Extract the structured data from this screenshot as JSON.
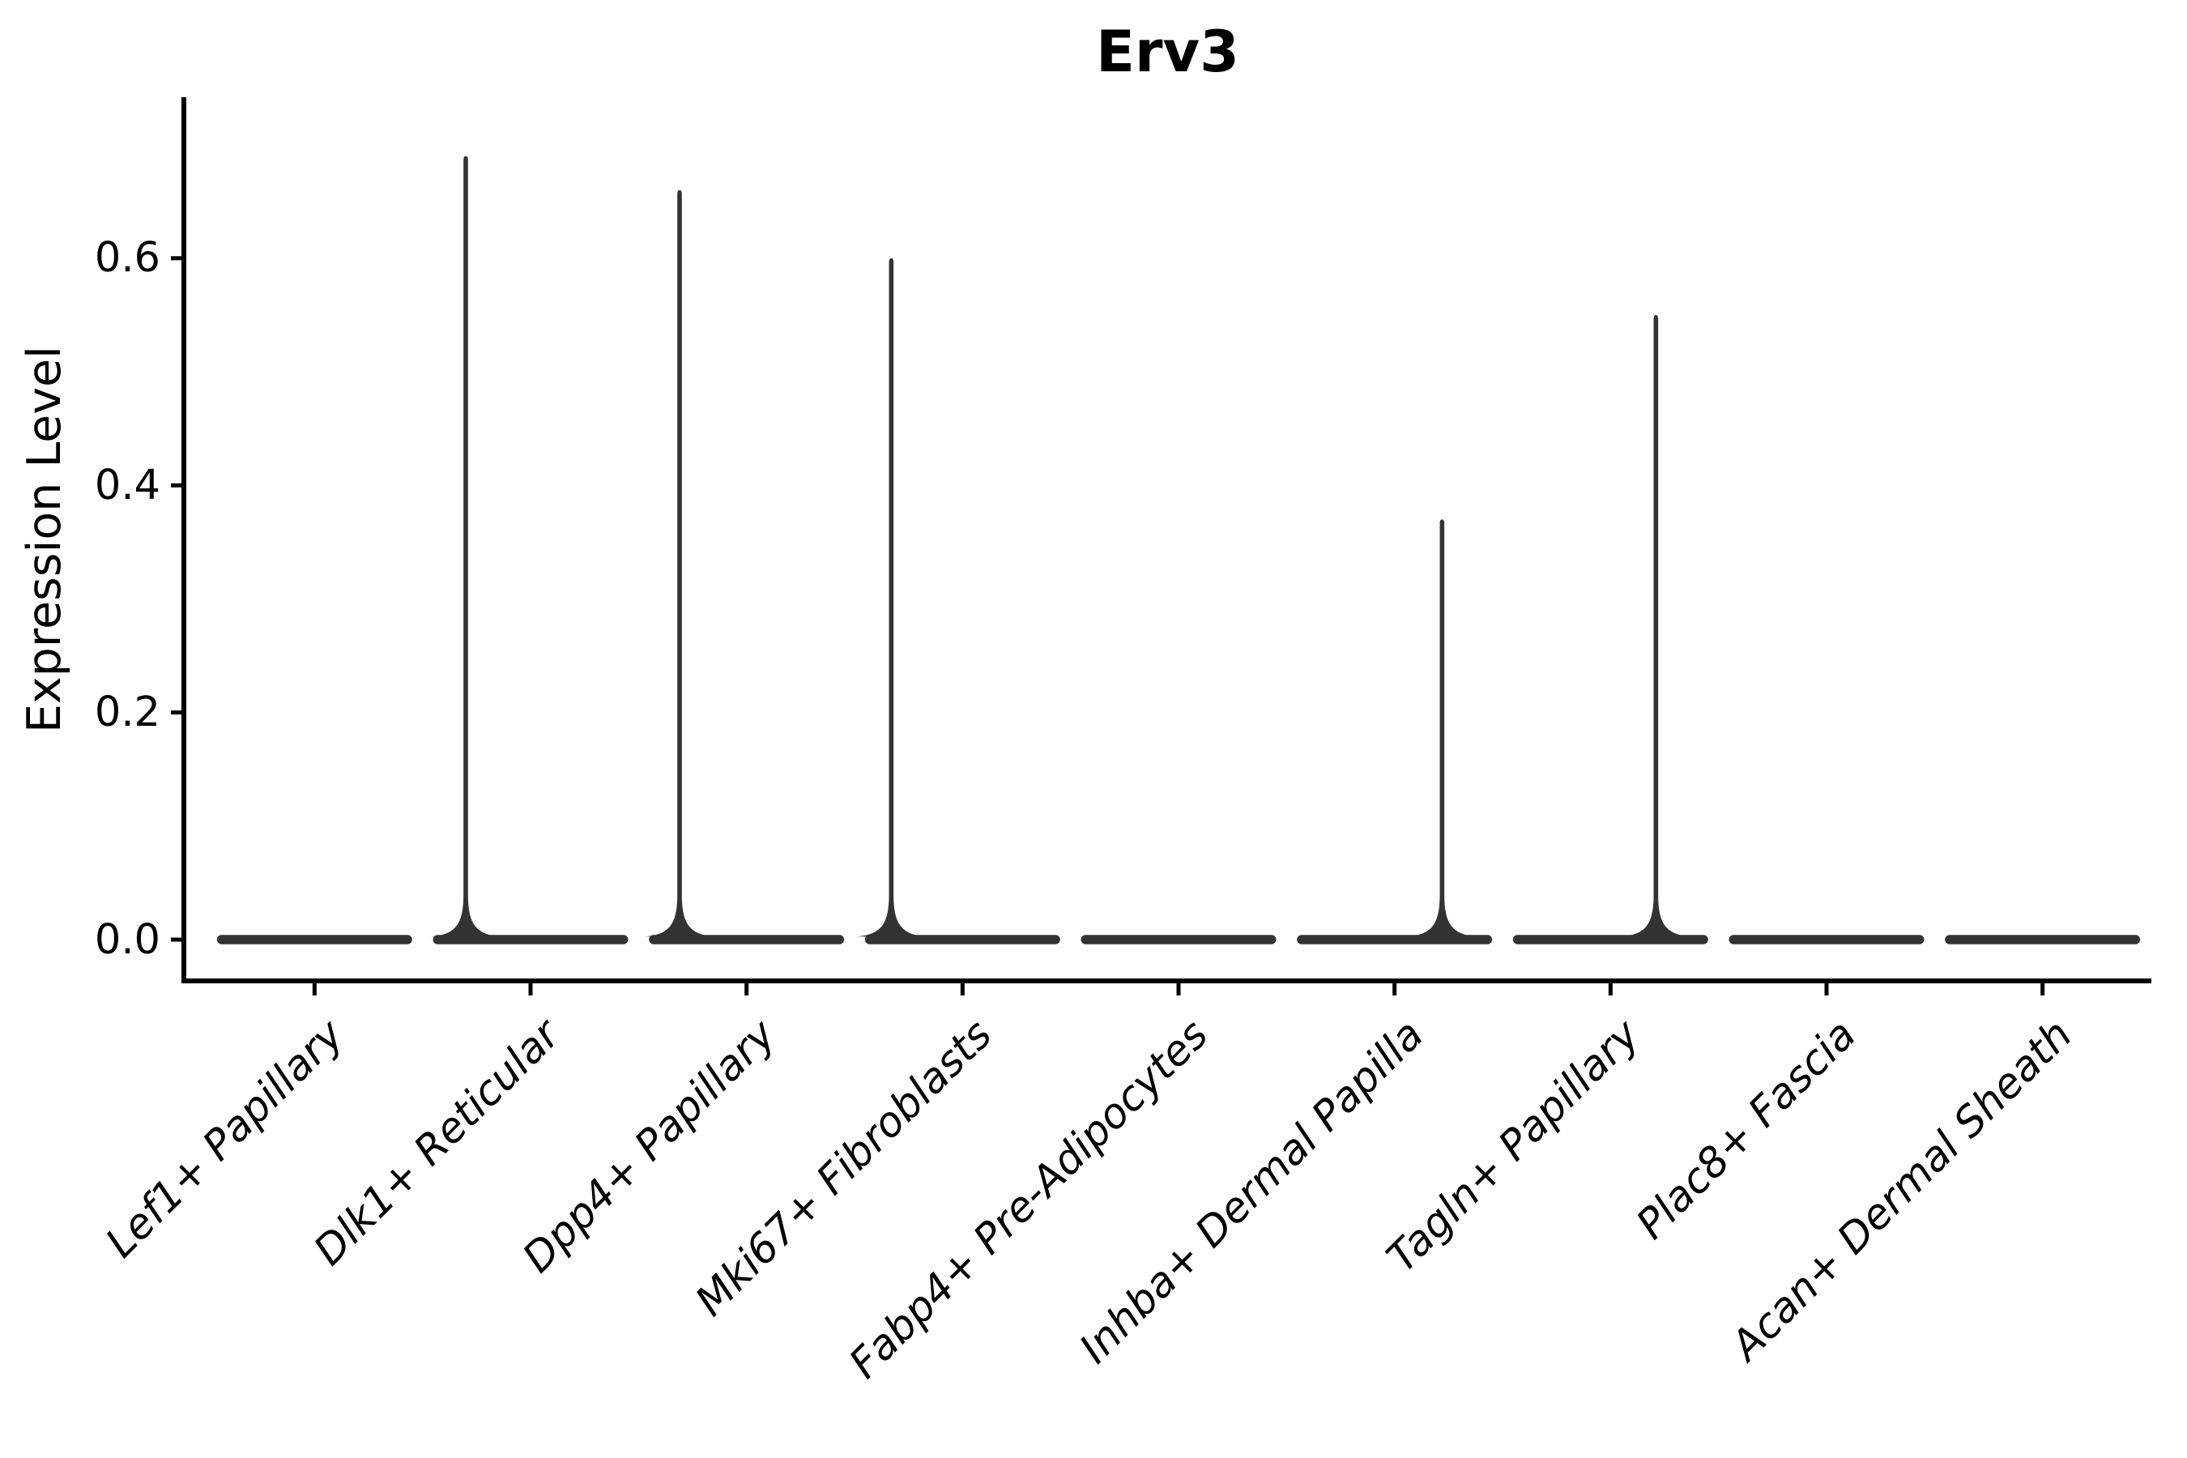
{
  "title": "Erv3",
  "ylabel": "Expression Level",
  "chart_data": {
    "type": "violin",
    "title": "Erv3",
    "xlabel": "",
    "ylabel": "Expression Level",
    "ylim": [
      0,
      0.74
    ],
    "yticks": [
      0.0,
      0.2,
      0.4,
      0.6
    ],
    "ytick_labels": [
      "0.0",
      "0.2",
      "0.4",
      "0.6"
    ],
    "grid": false,
    "legend": false,
    "categories": [
      "Lef1+ Papillary",
      "Dlk1+ Reticular",
      "Dpp4+ Papillary",
      "Mki67+ Fibroblasts",
      "Fabp4+ Pre-Adipocytes",
      "Inhba+ Dermal Papilla",
      "Tagln+ Papillary",
      "Plac8+ Fascia",
      "Acan+ Dermal Sheath"
    ],
    "violins": [
      {
        "category": "Lef1+ Papillary",
        "max_expression": 0.0,
        "bulk_at": 0.0,
        "has_spike": false,
        "spike_offset_frac": 0
      },
      {
        "category": "Dlk1+ Reticular",
        "max_expression": 0.69,
        "bulk_at": 0.0,
        "has_spike": true,
        "spike_offset_frac": -0.3
      },
      {
        "category": "Dpp4+ Papillary",
        "max_expression": 0.66,
        "bulk_at": 0.0,
        "has_spike": true,
        "spike_offset_frac": -0.31
      },
      {
        "category": "Mki67+ Fibroblasts",
        "max_expression": 0.6,
        "bulk_at": 0.0,
        "has_spike": true,
        "spike_offset_frac": -0.33
      },
      {
        "category": "Fabp4+ Pre-Adipocytes",
        "max_expression": 0.0,
        "bulk_at": 0.0,
        "has_spike": false,
        "spike_offset_frac": 0
      },
      {
        "category": "Inhba+ Dermal Papilla",
        "max_expression": 0.37,
        "bulk_at": 0.0,
        "has_spike": true,
        "spike_offset_frac": 0.22
      },
      {
        "category": "Tagln+ Papillary",
        "max_expression": 0.55,
        "bulk_at": 0.0,
        "has_spike": true,
        "spike_offset_frac": 0.21
      },
      {
        "category": "Plac8+ Fascia",
        "max_expression": 0.0,
        "bulk_at": 0.0,
        "has_spike": false,
        "spike_offset_frac": 0
      },
      {
        "category": "Acan+ Dermal Sheath",
        "max_expression": 0.0,
        "bulk_at": 0.0,
        "has_spike": false,
        "spike_offset_frac": 0
      }
    ],
    "style": {
      "violin_color": "#333333",
      "axis_color": "#000000",
      "text_color": "#000000",
      "background": "#ffffff",
      "x_label_rotation_deg": 45,
      "x_labels_italic": true
    }
  }
}
